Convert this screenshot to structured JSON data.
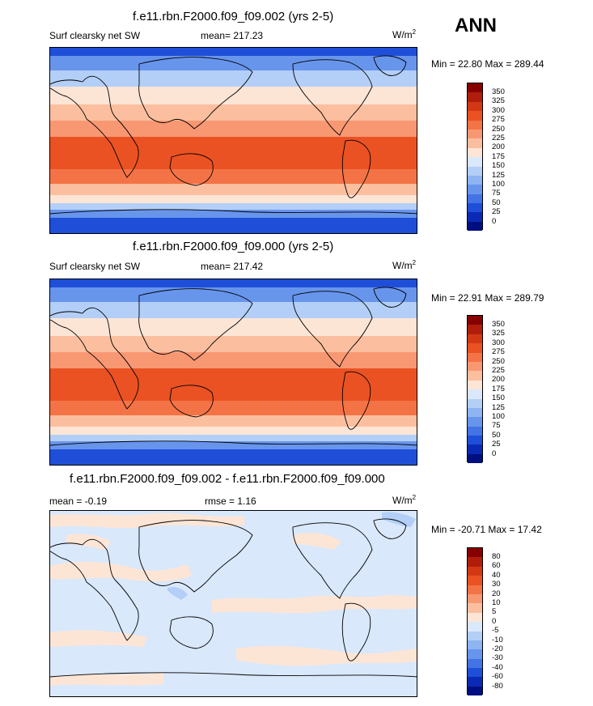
{
  "season": "ANN",
  "panels": [
    {
      "title": "f.e11.rbn.F2000.f09_f09.002 (yrs 2-5)",
      "left_label": "Surf clearsky net SW",
      "center_label": "mean= 217.23",
      "units": "W/m",
      "units_sup": "2",
      "minmax": "Min =  22.80 Max = 289.44",
      "levels": [
        "350",
        "325",
        "300",
        "275",
        "250",
        "225",
        "200",
        "175",
        "150",
        "125",
        "100",
        "75",
        "50",
        "25",
        "0"
      ],
      "colors": [
        "#870000",
        "#b01e0b",
        "#d33815",
        "#ea5223",
        "#f47346",
        "#f89873",
        "#fbbf9f",
        "#fde5d6",
        "#d9e8fa",
        "#b3cff7",
        "#8eb4f1",
        "#6895ec",
        "#4373e4",
        "#1f4fd8",
        "#0a2ab5",
        "#000f80"
      ]
    },
    {
      "title": "f.e11.rbn.F2000.f09_f09.000 (yrs 2-5)",
      "left_label": "Surf clearsky net SW",
      "center_label": "mean= 217.42",
      "units": "W/m",
      "units_sup": "2",
      "minmax": "Min =  22.91 Max = 289.79",
      "levels": [
        "350",
        "325",
        "300",
        "275",
        "250",
        "225",
        "200",
        "175",
        "150",
        "125",
        "100",
        "75",
        "50",
        "25",
        "0"
      ],
      "colors": [
        "#870000",
        "#b01e0b",
        "#d33815",
        "#ea5223",
        "#f47346",
        "#f89873",
        "#fbbf9f",
        "#fde5d6",
        "#d9e8fa",
        "#b3cff7",
        "#8eb4f1",
        "#6895ec",
        "#4373e4",
        "#1f4fd8",
        "#0a2ab5",
        "#000f80"
      ]
    },
    {
      "title": "f.e11.rbn.F2000.f09_f09.002 - f.e11.rbn.F2000.f09_f09.000",
      "left_label": "mean =  -0.19",
      "center_label": "rmse =   1.16",
      "units": "W/m",
      "units_sup": "2",
      "minmax": "Min = -20.71 Max =  17.42",
      "levels": [
        "80",
        "60",
        "40",
        "30",
        "20",
        "10",
        "5",
        "0",
        "-5",
        "-10",
        "-20",
        "-30",
        "-40",
        "-60",
        "-80"
      ],
      "colors": [
        "#870000",
        "#b01e0b",
        "#d33815",
        "#ea5223",
        "#f47346",
        "#f89873",
        "#fbbf9f",
        "#fde5d6",
        "#d9e8fa",
        "#b3cff7",
        "#8eb4f1",
        "#6895ec",
        "#4373e4",
        "#1f4fd8",
        "#0a2ab5",
        "#000f80"
      ]
    }
  ],
  "chart_data": [
    {
      "type": "heatmap",
      "title": "f.e11.rbn.F2000.f09_f09.002 (yrs 2-5)",
      "variable": "Surf clearsky net SW",
      "units": "W/m2",
      "mean": 217.23,
      "min": 22.8,
      "max": 289.44,
      "contour_levels": [
        0,
        25,
        50,
        75,
        100,
        125,
        150,
        175,
        200,
        225,
        250,
        275,
        300,
        325,
        350
      ]
    },
    {
      "type": "heatmap",
      "title": "f.e11.rbn.F2000.f09_f09.000 (yrs 2-5)",
      "variable": "Surf clearsky net SW",
      "units": "W/m2",
      "mean": 217.42,
      "min": 22.91,
      "max": 289.79,
      "contour_levels": [
        0,
        25,
        50,
        75,
        100,
        125,
        150,
        175,
        200,
        225,
        250,
        275,
        300,
        325,
        350
      ]
    },
    {
      "type": "heatmap",
      "title": "f.e11.rbn.F2000.f09_f09.002 - f.e11.rbn.F2000.f09_f09.000",
      "units": "W/m2",
      "mean": -0.19,
      "rmse": 1.16,
      "min": -20.71,
      "max": 17.42,
      "contour_levels": [
        -80,
        -60,
        -40,
        -30,
        -20,
        -10,
        -5,
        0,
        5,
        10,
        20,
        30,
        40,
        60,
        80
      ]
    }
  ]
}
